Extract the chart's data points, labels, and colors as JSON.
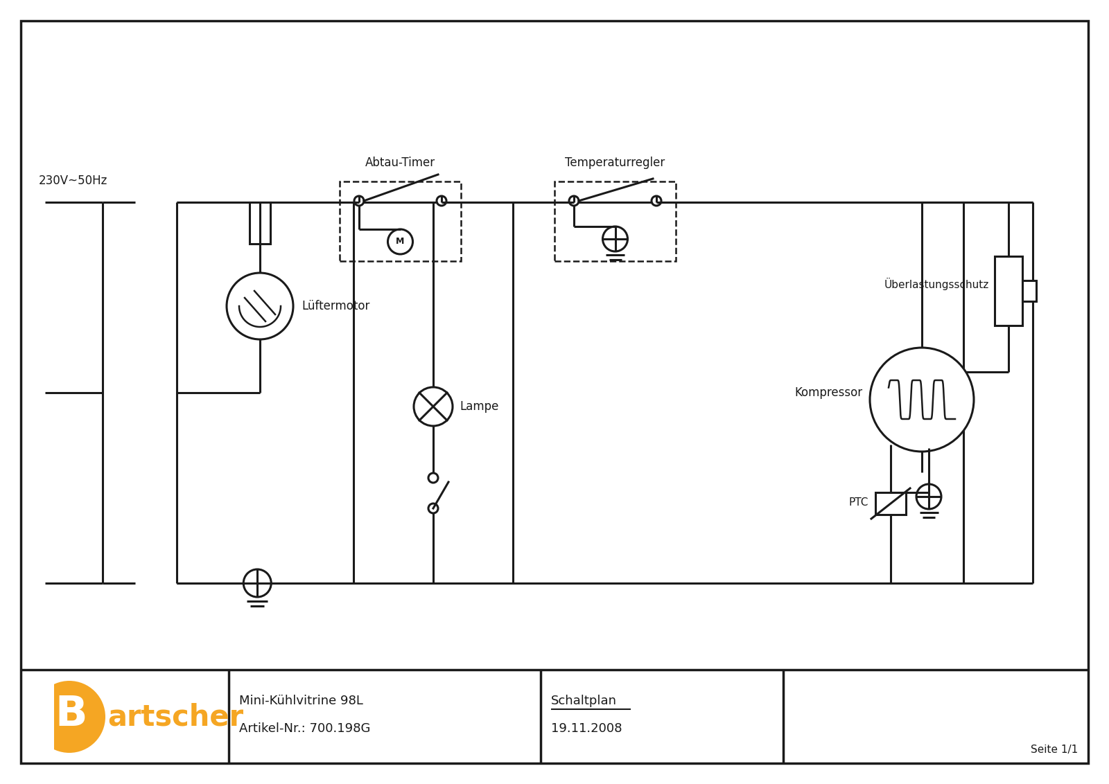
{
  "bg_color": "#ffffff",
  "line_color": "#1a1a1a",
  "orange_color": "#F5A623",
  "title_line1": "Mini-Kühlvitrine 98L",
  "title_line2": "Artikel-Nr.: 700.198G",
  "schaltplan_line1": "Schaltplan",
  "schaltplan_line2": "19.11.2008",
  "seite": "Seite 1/1",
  "voltage_label": "230V~50Hz",
  "luftermotor_label": "Lüftermotor",
  "lampe_label": "Lampe",
  "abtau_timer_label": "Abtau-Timer",
  "temperaturregler_label": "Temperaturregler",
  "uberlastungsschutz_label": "Überlastungsschutz",
  "kompressor_label": "Kompressor",
  "ptc_label": "PTC"
}
